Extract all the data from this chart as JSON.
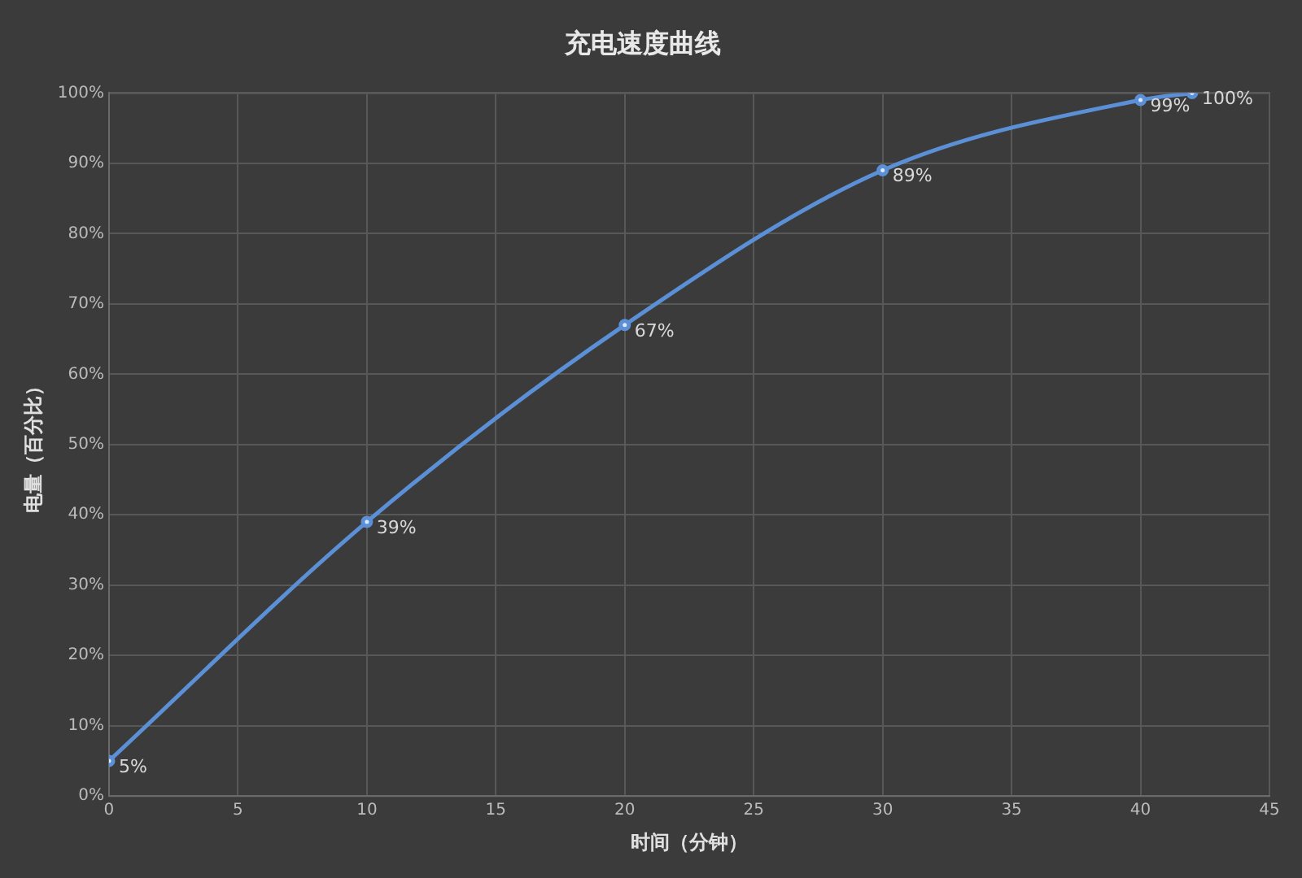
{
  "chart_data": {
    "type": "line",
    "title": "充电速度曲线",
    "xlabel": "时间（分钟）",
    "ylabel": "电量（百分比）",
    "x": [
      0,
      10,
      20,
      30,
      40,
      42
    ],
    "series": [
      {
        "color": "#5b8fd6",
        "values": [
          5,
          39,
          67,
          89,
          99,
          100
        ],
        "value_labels": [
          "5%",
          "39%",
          "67%",
          "89%",
          "99%",
          "100%"
        ]
      }
    ],
    "xlim": [
      0,
      45
    ],
    "xticks": [
      0,
      5,
      10,
      15,
      20,
      25,
      30,
      35,
      40,
      45
    ],
    "ylim": [
      0,
      100
    ],
    "yticks": [
      {
        "value": 0,
        "label": "0%"
      },
      {
        "value": 10,
        "label": "10%"
      },
      {
        "value": 20,
        "label": "20%"
      },
      {
        "value": 30,
        "label": "30%"
      },
      {
        "value": 40,
        "label": "40%"
      },
      {
        "value": 50,
        "label": "50%"
      },
      {
        "value": 60,
        "label": "60%"
      },
      {
        "value": 70,
        "label": "70%"
      },
      {
        "value": 80,
        "label": "80%"
      },
      {
        "value": 90,
        "label": "90%"
      },
      {
        "value": 100,
        "label": "100%"
      }
    ],
    "grid": true,
    "legend": false,
    "marker": "circle",
    "line_style": "solid"
  }
}
